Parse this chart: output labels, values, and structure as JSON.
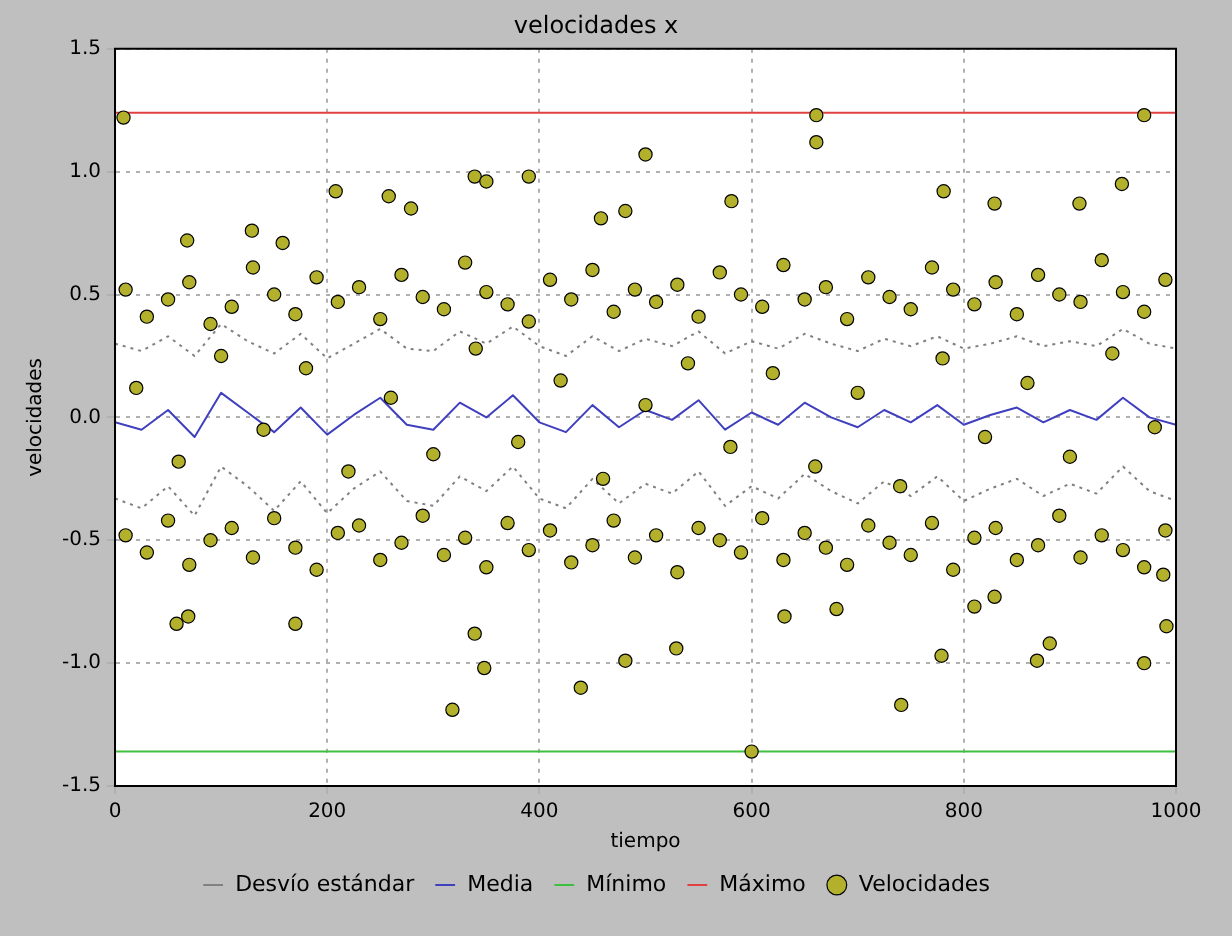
{
  "chart_data": {
    "type": "scatter",
    "title": "velocidades x",
    "xlabel": "tiempo",
    "ylabel": "velocidades",
    "xlim": [
      0,
      1000
    ],
    "xticks": [
      0,
      200,
      400,
      600,
      800,
      1000
    ],
    "ylim": [
      -1.5,
      1.5
    ],
    "yticks": [
      {
        "value": -1.5,
        "label": "-1.5"
      },
      {
        "value": -1.0,
        "label": "-1.0"
      },
      {
        "value": -0.5,
        "label": "-0.5"
      },
      {
        "value": 0,
        "label": "0.0"
      },
      {
        "value": 0.5,
        "label": "0.5"
      },
      {
        "value": 1.0,
        "label": "1.0"
      },
      {
        "value": 1.5,
        "label": "1.5"
      }
    ],
    "grid": true,
    "legend": "bottom",
    "series": [
      {
        "name": "Desvío estándar",
        "type": "line",
        "line_style": "dotted",
        "marker": "none",
        "color": "#808080",
        "x": [
          0,
          25,
          50,
          75,
          100,
          125,
          150,
          175,
          200,
          225,
          250,
          275,
          300,
          325,
          350,
          375,
          400,
          425,
          450,
          475,
          500,
          525,
          550,
          575,
          600,
          625,
          650,
          675,
          700,
          725,
          750,
          775,
          800,
          825,
          850,
          875,
          900,
          925,
          950,
          975,
          1000
        ],
        "values": [
          0.3,
          0.27,
          0.33,
          0.25,
          0.38,
          0.31,
          0.26,
          0.34,
          0.24,
          0.3,
          0.36,
          0.28,
          0.27,
          0.35,
          0.3,
          0.37,
          0.29,
          0.25,
          0.33,
          0.27,
          0.32,
          0.29,
          0.35,
          0.26,
          0.31,
          0.28,
          0.34,
          0.3,
          0.27,
          0.32,
          0.29,
          0.33,
          0.28,
          0.3,
          0.33,
          0.29,
          0.31,
          0.29,
          0.36,
          0.3,
          0.28
        ]
      },
      {
        "type": "line",
        "line_style": "dotted",
        "marker": "none",
        "color": "#808080",
        "x": [
          0,
          25,
          50,
          75,
          100,
          125,
          150,
          175,
          200,
          225,
          250,
          275,
          300,
          325,
          350,
          375,
          400,
          425,
          450,
          475,
          500,
          525,
          550,
          575,
          600,
          625,
          650,
          675,
          700,
          725,
          750,
          775,
          800,
          825,
          850,
          875,
          900,
          925,
          950,
          975,
          1000
        ],
        "values": [
          -0.33,
          -0.37,
          -0.28,
          -0.4,
          -0.2,
          -0.28,
          -0.38,
          -0.26,
          -0.39,
          -0.29,
          -0.22,
          -0.34,
          -0.36,
          -0.24,
          -0.3,
          -0.2,
          -0.33,
          -0.37,
          -0.25,
          -0.35,
          -0.27,
          -0.31,
          -0.22,
          -0.36,
          -0.28,
          -0.33,
          -0.23,
          -0.3,
          -0.35,
          -0.26,
          -0.32,
          -0.24,
          -0.34,
          -0.29,
          -0.25,
          -0.32,
          -0.27,
          -0.31,
          -0.2,
          -0.3,
          -0.34
        ]
      },
      {
        "name": "Media",
        "type": "line",
        "line_style": "solid",
        "marker": "none",
        "color": "#3f3fbf",
        "x": [
          0,
          25,
          50,
          75,
          100,
          125,
          150,
          175,
          200,
          225,
          250,
          275,
          300,
          325,
          350,
          375,
          400,
          425,
          450,
          475,
          500,
          525,
          550,
          575,
          600,
          625,
          650,
          675,
          700,
          725,
          750,
          775,
          800,
          825,
          850,
          875,
          900,
          925,
          950,
          975,
          1000
        ],
        "values": [
          -0.02,
          -0.05,
          0.03,
          -0.08,
          0.1,
          0.02,
          -0.06,
          0.04,
          -0.07,
          0.01,
          0.08,
          -0.03,
          -0.05,
          0.06,
          0.0,
          0.09,
          -0.02,
          -0.06,
          0.05,
          -0.04,
          0.03,
          -0.01,
          0.07,
          -0.05,
          0.02,
          -0.03,
          0.06,
          0.0,
          -0.04,
          0.03,
          -0.02,
          0.05,
          -0.03,
          0.01,
          0.04,
          -0.02,
          0.03,
          -0.01,
          0.08,
          0.0,
          -0.03
        ]
      },
      {
        "name": "Mínimo",
        "type": "line",
        "line_style": "solid",
        "marker": "none",
        "color": "#3fbf3f",
        "x": [
          0,
          1000
        ],
        "values": [
          -1.36,
          -1.36
        ]
      },
      {
        "name": "Máximo",
        "type": "line",
        "line_style": "solid",
        "marker": "none",
        "color": "#e04040",
        "x": [
          0,
          1000
        ],
        "values": [
          1.24,
          1.24
        ]
      },
      {
        "name": "Velocidades",
        "type": "scatter",
        "marker": "circle",
        "color": "#b3b12c",
        "x": [
          10,
          30,
          50,
          70,
          90,
          110,
          130,
          150,
          170,
          190,
          210,
          230,
          250,
          270,
          290,
          310,
          330,
          350,
          370,
          390,
          410,
          430,
          450,
          470,
          490,
          510,
          530,
          550,
          570,
          590,
          610,
          630,
          650,
          670,
          690,
          710,
          730,
          750,
          770,
          790,
          810,
          830,
          850,
          870,
          890,
          910,
          930,
          950,
          970,
          990,
          10,
          30,
          50,
          70,
          90,
          110,
          130,
          150,
          170,
          190,
          210,
          230,
          250,
          270,
          290,
          310,
          330,
          350,
          370,
          390,
          410,
          430,
          450,
          470,
          490,
          510,
          530,
          550,
          570,
          590,
          610,
          630,
          650,
          670,
          690,
          710,
          730,
          750,
          770,
          790,
          810,
          830,
          850,
          870,
          890,
          910,
          930,
          950,
          970,
          990,
          20,
          60,
          100,
          140,
          180,
          220,
          260,
          300,
          340,
          380,
          420,
          460,
          500,
          540,
          580,
          620,
          660,
          700,
          740,
          780,
          820,
          860,
          900,
          940,
          980,
          8,
          58,
          69,
          170,
          318,
          339,
          350,
          390,
          339,
          348,
          208,
          258,
          279,
          500,
          439,
          481,
          129,
          68,
          158,
          458,
          481,
          661,
          661,
          970,
          949,
          781,
          829,
          909,
          581,
          741,
          529,
          779,
          869,
          970,
          881,
          680,
          631,
          810,
          829,
          991,
          988,
          600
        ],
        "values": [
          0.52,
          0.41,
          0.48,
          0.55,
          0.38,
          0.45,
          0.61,
          0.5,
          0.42,
          0.57,
          0.47,
          0.53,
          0.4,
          0.58,
          0.49,
          0.44,
          0.63,
          0.51,
          0.46,
          0.39,
          0.56,
          0.48,
          0.6,
          0.43,
          0.52,
          0.47,
          0.54,
          0.41,
          0.59,
          0.5,
          0.45,
          0.62,
          0.48,
          0.53,
          0.4,
          0.57,
          0.49,
          0.44,
          0.61,
          0.52,
          0.46,
          0.55,
          0.42,
          0.58,
          0.5,
          0.47,
          0.64,
          0.51,
          0.43,
          0.56,
          -0.48,
          -0.55,
          -0.42,
          -0.6,
          -0.5,
          -0.45,
          -0.57,
          -0.41,
          -0.53,
          -0.62,
          -0.47,
          -0.44,
          -0.58,
          -0.51,
          -0.4,
          -0.56,
          -0.49,
          -0.61,
          -0.43,
          -0.54,
          -0.46,
          -0.59,
          -0.52,
          -0.42,
          -0.57,
          -0.48,
          -0.63,
          -0.45,
          -0.5,
          -0.55,
          -0.41,
          -0.58,
          -0.47,
          -0.53,
          -0.6,
          -0.44,
          -0.51,
          -0.56,
          -0.43,
          -0.62,
          -0.49,
          -0.45,
          -0.58,
          -0.52,
          -0.4,
          -0.57,
          -0.48,
          -0.54,
          -0.61,
          -0.46,
          0.12,
          -0.18,
          0.25,
          -0.05,
          0.2,
          -0.22,
          0.08,
          -0.15,
          0.28,
          -0.1,
          0.15,
          -0.25,
          0.05,
          0.22,
          -0.12,
          0.18,
          -0.2,
          0.1,
          -0.28,
          0.24,
          -0.08,
          0.14,
          -0.16,
          0.26,
          -0.04,
          1.22,
          -0.84,
          -0.81,
          -0.84,
          -1.19,
          0.98,
          0.96,
          0.98,
          -0.88,
          -1.02,
          0.92,
          0.9,
          0.85,
          1.07,
          -1.1,
          -0.99,
          0.76,
          0.72,
          0.71,
          0.81,
          0.84,
          1.23,
          1.12,
          1.23,
          0.95,
          0.92,
          0.87,
          0.87,
          0.88,
          -1.17,
          -0.94,
          -0.97,
          -0.99,
          -1.0,
          -0.92,
          -0.78,
          -0.81,
          -0.77,
          -0.73,
          -0.85,
          -0.64,
          -1.36
        ]
      }
    ]
  }
}
